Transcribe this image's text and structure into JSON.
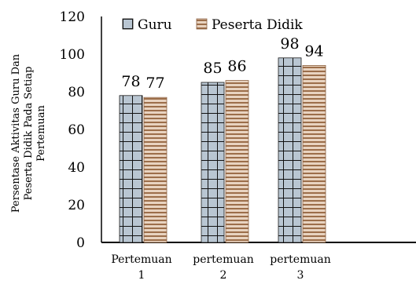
{
  "chart_data": {
    "type": "bar",
    "categories": [
      [
        "Pertemuan",
        "1"
      ],
      [
        "pertemuan",
        "2"
      ],
      [
        "pertemuan",
        "3"
      ]
    ],
    "series": [
      {
        "name": "Guru",
        "values": [
          78,
          85,
          98
        ],
        "color": "#b9c6d2"
      },
      {
        "name": "Peserta Didik",
        "values": [
          77,
          86,
          94
        ],
        "color": "#c9a07f"
      }
    ],
    "ylabel": [
      "Persentase Aktivitas Guru Dan",
      "Peserta Didik Pada Setiap",
      "Pertemuan"
    ],
    "ylim": [
      0,
      120
    ],
    "yticks": [
      0,
      20,
      40,
      60,
      80,
      100,
      120
    ],
    "data_labels": true,
    "legend": "top"
  }
}
